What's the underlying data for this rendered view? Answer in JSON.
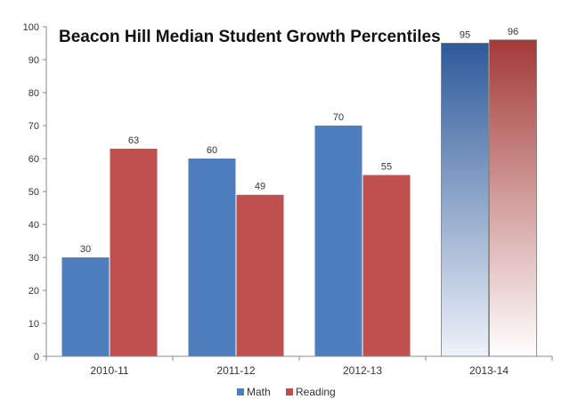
{
  "chart_data": {
    "type": "bar",
    "title": "Beacon Hill Median Student Growth Percentiles",
    "categories": [
      "2010-11",
      "2011-12",
      "2012-13",
      "2013-14"
    ],
    "series": [
      {
        "name": "Math",
        "values": [
          30,
          60,
          70,
          95
        ],
        "color": "#4F7EBE"
      },
      {
        "name": "Reading",
        "values": [
          63,
          49,
          55,
          96
        ],
        "color": "#C0504D"
      }
    ],
    "ylim": [
      0,
      100
    ],
    "yticks": [
      0,
      10,
      20,
      30,
      40,
      50,
      60,
      70,
      80,
      90,
      100
    ],
    "gradient_category": "2013-14",
    "legend_position": "bottom",
    "grid": false
  }
}
